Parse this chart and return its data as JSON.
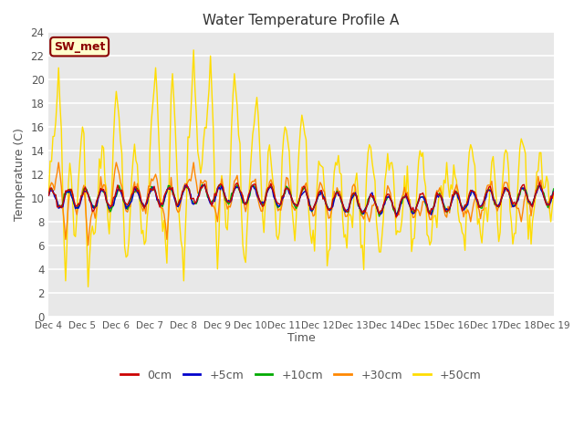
{
  "title": "Water Temperature Profile A",
  "xlabel": "Time",
  "ylabel": "Temperature (C)",
  "ylim": [
    0,
    24
  ],
  "yticks": [
    0,
    2,
    4,
    6,
    8,
    10,
    12,
    14,
    16,
    18,
    20,
    22,
    24
  ],
  "colors": {
    "0cm": "#cc0000",
    "+5cm": "#0000cc",
    "+10cm": "#00aa00",
    "+30cm": "#ff8800",
    "+50cm": "#ffdd00"
  },
  "legend_labels": [
    "0cm",
    "+5cm",
    "+10cm",
    "+30cm",
    "+50cm"
  ],
  "annotation_text": "SW_met",
  "annotation_color": "#8b0000",
  "annotation_bg": "#ffffcc",
  "background_color": "#e8e8e8",
  "x_tick_labels": [
    "Dec 4",
    "Dec 5",
    "Dec 6",
    "Dec 7",
    "Dec 8",
    "Dec 9",
    "Dec 10",
    "Dec 11",
    "Dec 12",
    "Dec 13",
    "Dec 14",
    "Dec 15",
    "Dec 16",
    "Dec 17",
    "Dec 18",
    "Dec 19"
  ],
  "figsize": [
    6.4,
    4.8
  ],
  "dpi": 100
}
